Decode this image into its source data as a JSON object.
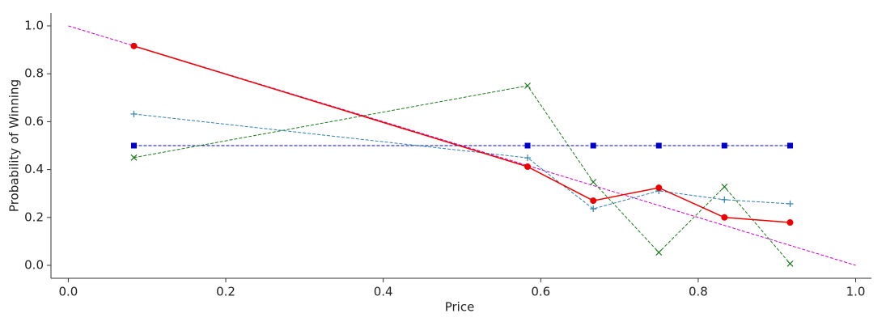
{
  "chart_data": {
    "type": "line",
    "xlabel": "Price",
    "ylabel": "Probability of Winning",
    "xlim": [
      -0.022,
      1.02
    ],
    "ylim": [
      -0.054,
      1.054
    ],
    "xticks": [
      {
        "value": 0,
        "label": "0.0"
      },
      0.2,
      0.4,
      0.6,
      0.8,
      {
        "value": 1,
        "label": "1.0"
      }
    ],
    "yticks": [
      {
        "value": 0,
        "label": "0.0"
      },
      0.2,
      0.4,
      0.6,
      0.8,
      {
        "value": 1,
        "label": "1.0"
      }
    ],
    "grid": false,
    "series": [
      {
        "color": "#cc00cc",
        "linestyle": "dashed",
        "marker": "none",
        "x": [
          0,
          1
        ],
        "values": [
          1,
          0
        ]
      },
      {
        "color": "#0000cc",
        "linestyle": "dashed",
        "marker": "square",
        "x": [
          0.0833,
          0.5833,
          0.6667,
          0.75,
          0.8333,
          0.9167
        ],
        "values": [
          0.5,
          0.5,
          0.5,
          0.5,
          0.5,
          0.5
        ]
      },
      {
        "color": "#1a7a1a",
        "linestyle": "dashed",
        "marker": "x",
        "x": [
          0.0833,
          0.5833,
          0.6667,
          0.75,
          0.8333,
          0.9167
        ],
        "values": [
          0.45,
          0.75,
          0.348,
          0.054,
          0.328,
          0.007
        ]
      },
      {
        "color": "#2f7fb0",
        "linestyle": "dashed",
        "marker": "plus",
        "x": [
          0.0833,
          0.5833,
          0.6667,
          0.75,
          0.8333,
          0.9167
        ],
        "values": [
          0.632,
          0.449,
          0.236,
          0.311,
          0.274,
          0.257
        ]
      },
      {
        "color": "#ee0000",
        "linestyle": "solid",
        "marker": "circle",
        "x": [
          0.0833,
          0.5833,
          0.6667,
          0.75,
          0.8333,
          0.9167
        ],
        "values": [
          0.916,
          0.412,
          0.27,
          0.324,
          0.2,
          0.179
        ]
      }
    ]
  }
}
